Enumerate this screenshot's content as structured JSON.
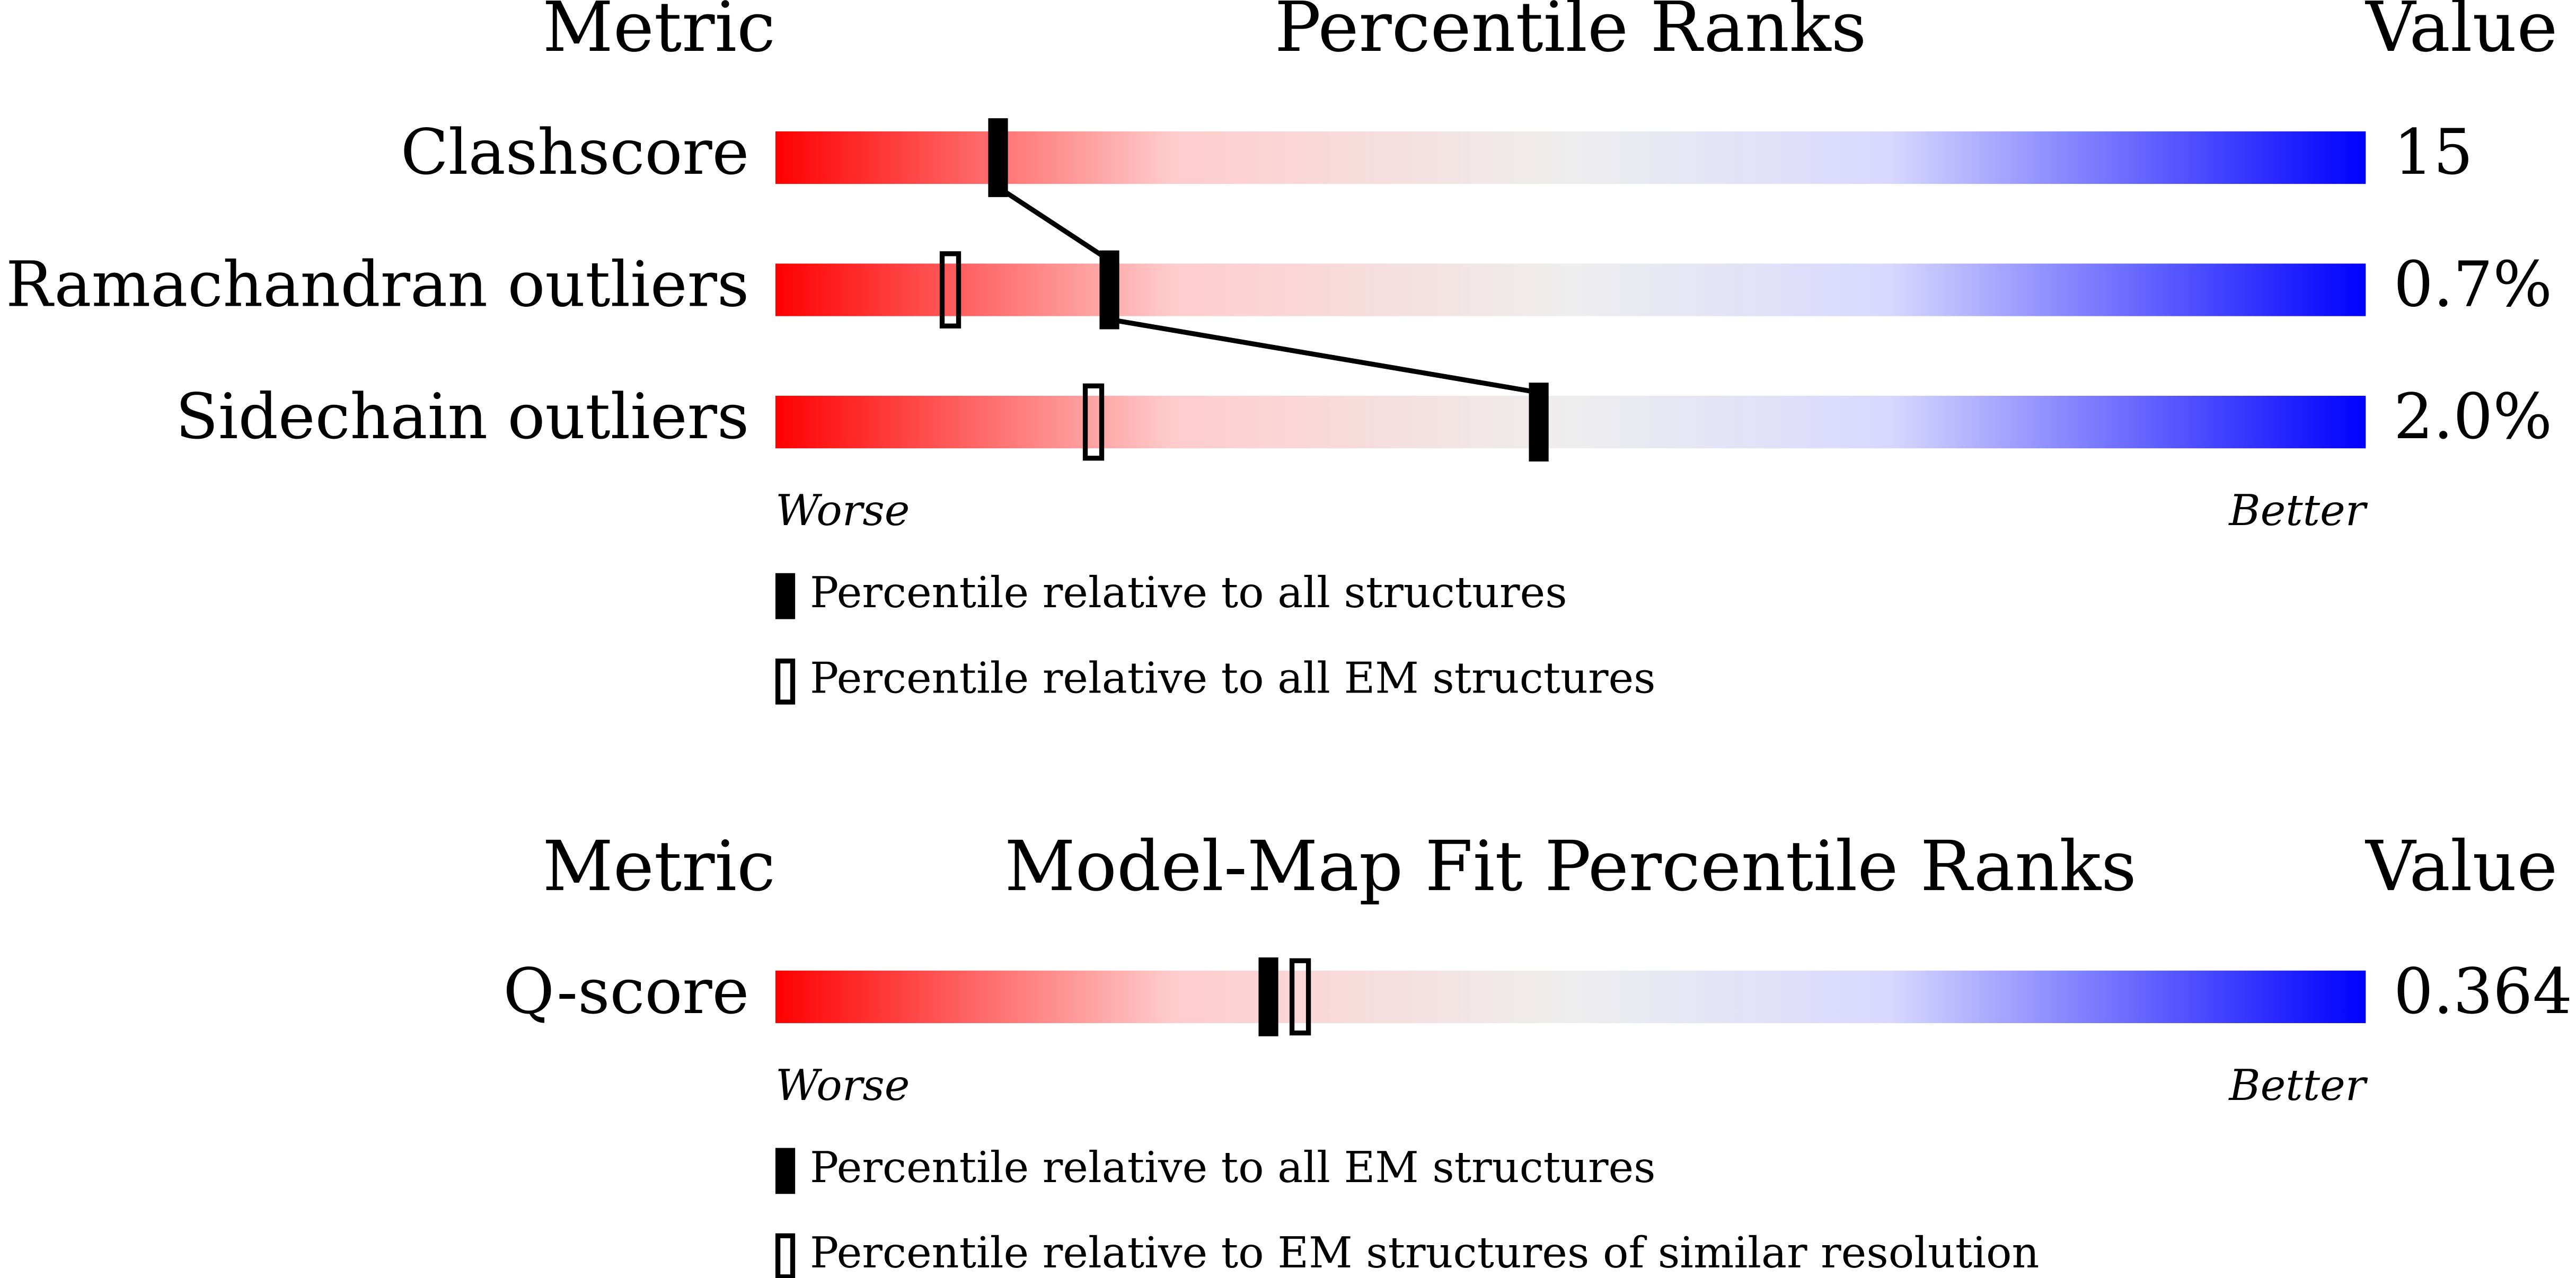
{
  "chart_data": [
    {
      "type": "slider",
      "headers": [
        "Metric",
        "Percentile Ranks",
        "Value"
      ],
      "metrics": [
        "Clashscore",
        "Ramachandran outliers",
        "Sidechain outliers"
      ],
      "value_labels": [
        "15",
        "0.7%",
        "2.0%"
      ],
      "series": [
        {
          "name": "Percentile relative to all structures",
          "style": "filled",
          "color": "#000000",
          "values": [
            14,
            21,
            48
          ]
        },
        {
          "name": "Percentile relative to all EM structures",
          "style": "open",
          "color": "#000000",
          "values": [
            null,
            11,
            20
          ]
        }
      ],
      "xlim": [
        0,
        100
      ],
      "axis_labels": [
        "Worse",
        "Better"
      ],
      "connect": "filled"
    },
    {
      "type": "slider",
      "headers": [
        "Metric",
        "Model-Map Fit Percentile Ranks",
        "Value"
      ],
      "metrics": [
        "Q-score"
      ],
      "value_labels": [
        "0.364"
      ],
      "series": [
        {
          "name": "Percentile relative to all EM structures",
          "style": "filled",
          "color": "#000000",
          "values": [
            31
          ]
        },
        {
          "name": "Percentile relative to EM structures of similar resolution",
          "style": "open",
          "color": "#000000",
          "values": [
            33
          ]
        }
      ],
      "xlim": [
        0,
        100
      ],
      "axis_labels": [
        "Worse",
        "Better"
      ],
      "connect": "filled"
    }
  ]
}
